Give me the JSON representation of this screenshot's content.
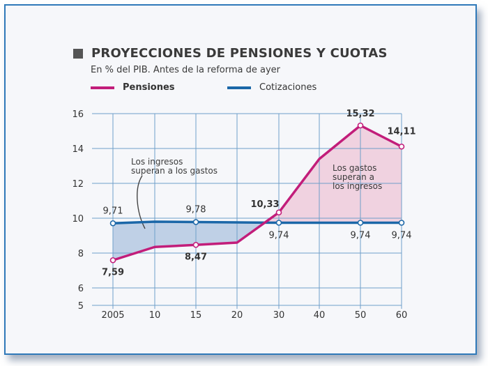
{
  "title": "PROYECCIONES DE PENSIONES Y CUOTAS",
  "subtitle": "En % del PIB. Antes de la reforma de ayer",
  "colors": {
    "pensiones": "#c21d7a",
    "cotizaciones": "#1b67a8",
    "area_ingresos": "#b9cbe3",
    "area_gastos": "#f0cddd",
    "grid": "#6f9fc9",
    "frame": "#2f79b9"
  },
  "chart_data": {
    "type": "line",
    "categories": [
      "2005",
      "10",
      "15",
      "20",
      "30",
      "40",
      "50",
      "60"
    ],
    "y_ticks": [
      5,
      6,
      8,
      10,
      12,
      14,
      16
    ],
    "ylim": [
      5,
      16
    ],
    "grid": true,
    "legend_position": "top-left",
    "series": [
      {
        "name": "Pensiones",
        "values": [
          7.59,
          8.35,
          8.47,
          8.6,
          10.33,
          13.4,
          15.32,
          14.11
        ],
        "labels": [
          "7,59",
          "",
          "8,47",
          "",
          "10,33",
          "",
          "15,32",
          "14,11"
        ]
      },
      {
        "name": "Cotizaciones",
        "values": [
          9.71,
          9.8,
          9.78,
          9.76,
          9.74,
          9.74,
          9.74,
          9.74
        ],
        "labels": [
          "9,71",
          "",
          "9,78",
          "",
          "9,74",
          "",
          "9,74",
          "9,74"
        ]
      }
    ],
    "annotations": [
      {
        "lines": [
          "Los ingresos",
          "superan a los gastos"
        ]
      },
      {
        "lines": [
          "Los gastos",
          "superan a",
          "los ingresos"
        ]
      }
    ]
  }
}
